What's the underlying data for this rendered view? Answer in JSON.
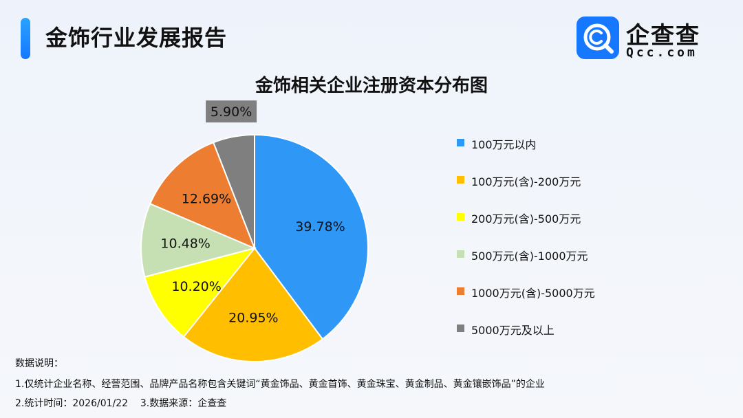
{
  "header": {
    "title": "金饰行业发展报告",
    "logo_name": "企查查",
    "logo_domain": "Qcc.com"
  },
  "colors": {
    "accent": "#1677ff",
    "brand": "#1677ff"
  },
  "chart_data": {
    "type": "pie",
    "title": "金饰相关企业注册资本分布图",
    "legend_position": "right",
    "categories": [
      "100万元以内",
      "100万元(含)-200万元",
      "200万元(含)-500万元",
      "500万元(含)-1000万元",
      "1000万元(含)-5000万元",
      "5000万元及以上"
    ],
    "values": [
      39.78,
      20.95,
      10.2,
      10.48,
      12.69,
      5.9
    ],
    "labels": [
      "39.78%",
      "20.95%",
      "10.20%",
      "10.48%",
      "12.69%",
      "5.90%"
    ],
    "colors": [
      "#2f98f7",
      "#ffbe00",
      "#ffff00",
      "#c6e0b4",
      "#ed7d31",
      "#7f7f7f"
    ]
  },
  "notes": {
    "heading": "数据说明：",
    "line1": "1.仅统计企业名称、经营范围、品牌产品名称包含关键词“黄金饰品、黄金首饰、黄金珠宝、黄金制品、黄金镶嵌饰品”的企业",
    "line2": "2.统计时间：2026/01/22    3.数据来源：企查查"
  }
}
